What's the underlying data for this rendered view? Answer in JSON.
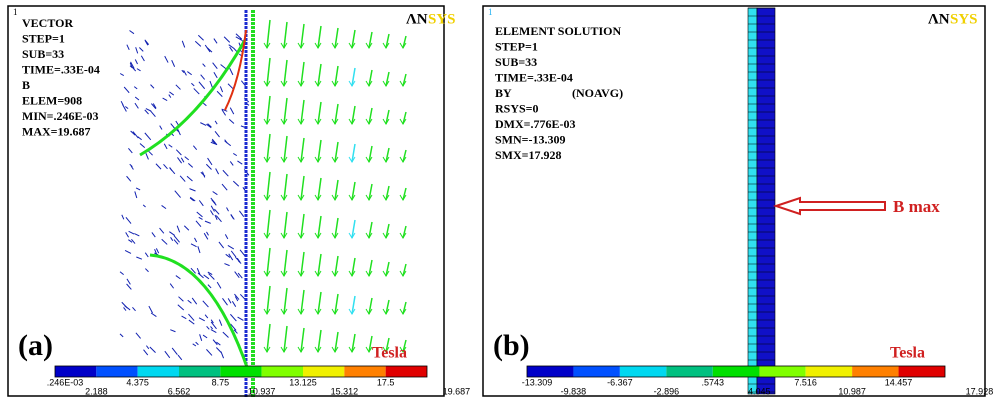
{
  "panels": [
    {
      "number": "1",
      "label": "(a)",
      "logo_an": "ΛN",
      "logo_sys": "SYS",
      "info_lines": [
        "VECTOR",
        "STEP=1",
        "SUB=33",
        "TIME=.33E-04",
        "B",
        "ELEM=908",
        "MIN=.246E-03",
        "MAX=19.687"
      ],
      "unit": "Tesla",
      "legend_top": [
        ".246E-03",
        "4.375",
        "8.75",
        "13.125",
        "17.5"
      ],
      "legend_bottom": [
        "2.188",
        "6.562",
        "10.937",
        "15.312",
        "19.687"
      ]
    },
    {
      "number": "1",
      "label": "(b)",
      "logo_an": "ΛN",
      "logo_sys": "SYS",
      "info_lines": [
        "ELEMENT SOLUTION",
        "STEP=1",
        "SUB=33",
        "TIME=.33E-04",
        "BY",
        "RSYS=0",
        "DMX=.776E-03",
        "SMN=-13.309",
        "SMX=17.928"
      ],
      "info_suffix": "(NOAVG)",
      "annotation": "B max",
      "unit": "Tesla",
      "legend_top": [
        "-13.309",
        "-6.367",
        ".5743",
        "7.516",
        "14.457"
      ],
      "legend_bottom": [
        "-9.838",
        "-2.896",
        "4.045",
        "10.987",
        "17.928"
      ]
    }
  ]
}
